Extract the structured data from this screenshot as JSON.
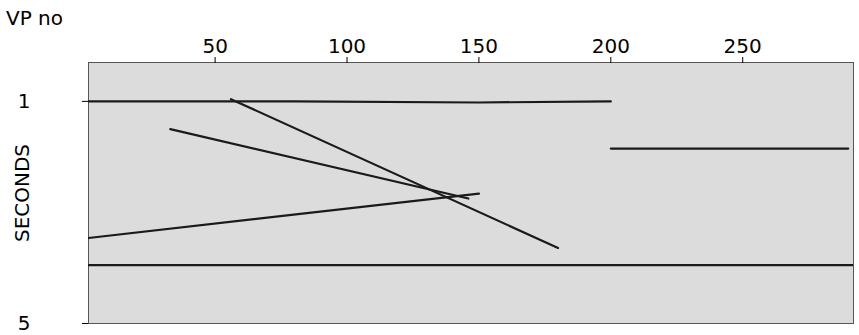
{
  "chart_data": {
    "type": "line",
    "xlabel": "VP no",
    "ylabel": "SECONDS",
    "xlim": [
      2,
      292
    ],
    "xticks": [
      50,
      100,
      150,
      200,
      250
    ],
    "ylim": [
      0.3,
      5
    ],
    "yticks": [
      1,
      5
    ],
    "color": "#1a1a1a",
    "series": [
      {
        "x": [
          2,
          80,
          150,
          200
        ],
        "values": [
          1.0,
          1.0,
          1.02,
          1.0
        ]
      },
      {
        "x": [
          56,
          180
        ],
        "values": [
          0.96,
          3.64
        ]
      },
      {
        "x": [
          33,
          146
        ],
        "values": [
          1.5,
          2.75
        ]
      },
      {
        "x": [
          2,
          150
        ],
        "values": [
          3.46,
          2.66
        ]
      },
      {
        "x": [
          200,
          290
        ],
        "values": [
          1.85,
          1.85
        ]
      },
      {
        "x": [
          2,
          292
        ],
        "values": [
          3.95,
          3.95
        ]
      }
    ]
  }
}
